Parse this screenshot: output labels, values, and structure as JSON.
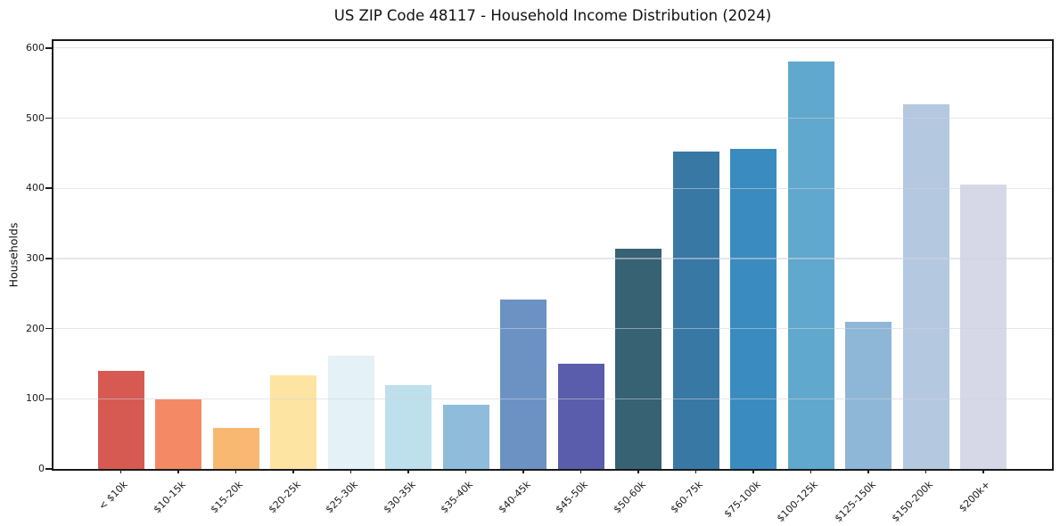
{
  "chart_data": {
    "type": "bar",
    "title": "US ZIP Code 48117 - Household Income Distribution (2024)",
    "xlabel": "",
    "ylabel": "Households",
    "ylim": [
      0,
      610
    ],
    "yticks": [
      0,
      100,
      200,
      300,
      400,
      500,
      600
    ],
    "grid": "horizontal-only",
    "legend": "none",
    "categories": [
      "< $10k",
      "$10-15k",
      "$15-20k",
      "$20-25k",
      "$25-30k",
      "$30-35k",
      "$35-40k",
      "$40-45k",
      "$45-50k",
      "$50-60k",
      "$60-75k",
      "$75-100k",
      "$100-125k",
      "$125-150k",
      "$150-200k",
      "$200k+"
    ],
    "values": [
      140,
      99,
      59,
      134,
      162,
      119,
      92,
      242,
      150,
      314,
      452,
      456,
      581,
      210,
      520,
      406
    ],
    "bar_colors": [
      "#d65a52",
      "#f48a65",
      "#f9b871",
      "#fde4a2",
      "#e4f1f6",
      "#bedfec",
      "#8fbcdb",
      "#6b92c3",
      "#5a5dab",
      "#366273",
      "#3878a4",
      "#3a8cc0",
      "#60a8cd",
      "#8eb7d7",
      "#b4c8e0",
      "#d6d8e7"
    ]
  },
  "colors": {
    "spine": "#1a1a1a",
    "grid": "#e7e7ee",
    "background": "#ffffff",
    "text": "#1a1a1a"
  }
}
